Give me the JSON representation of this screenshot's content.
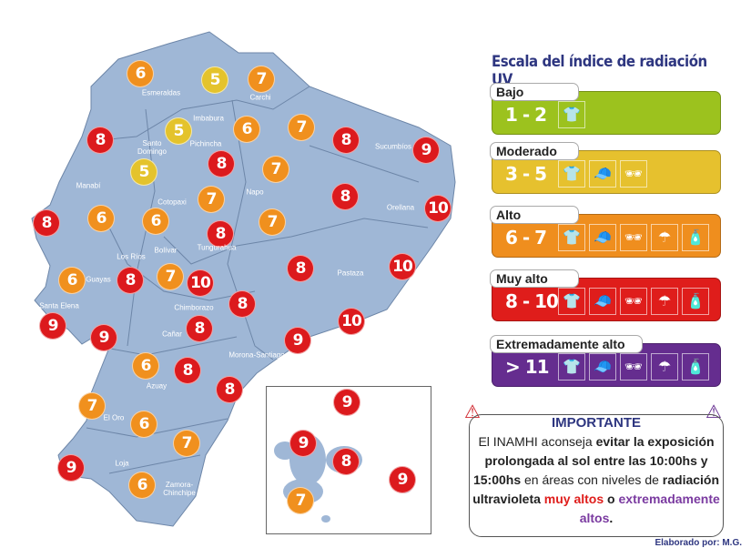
{
  "legend": {
    "title": "Escala del índice de radiación UV",
    "levels": [
      {
        "name": "Bajo",
        "range": "1 - 2",
        "color": "#9cc21e",
        "icons": [
          "shirt-icon"
        ]
      },
      {
        "name": "Moderado",
        "range": "3 - 5",
        "color": "#e6c12e",
        "icons": [
          "shirt-icon",
          "cap-icon",
          "sunglasses-icon"
        ]
      },
      {
        "name": "Alto",
        "range": "6 - 7",
        "color": "#ef8e1e",
        "icons": [
          "shirt-icon",
          "cap-icon",
          "sunglasses-icon",
          "umbrella-icon",
          "sunscreen-icon"
        ]
      },
      {
        "name": "Muy alto",
        "range": "8 - 10",
        "color": "#df1d1b",
        "icons": [
          "shirt-icon",
          "cap-icon",
          "sunglasses-icon",
          "umbrella-icon",
          "sunscreen-icon"
        ]
      },
      {
        "name": "Extremadamente alto",
        "range": "> 11",
        "color": "#652d8f",
        "icons": [
          "shirt-icon",
          "cap-icon",
          "sunglasses-icon",
          "umbrella-icon",
          "sunscreen-icon"
        ]
      }
    ]
  },
  "important": {
    "title": "IMPORTANTE",
    "t1": "El INAMHI aconseja ",
    "b1": "evitar la exposición prolongada al sol entre las 10:00hs y 15:00hs",
    "t2": " en áreas con niveles de ",
    "b2": "radiación ultravioleta ",
    "r1": "muy altos",
    "t3": " o ",
    "p1": "extremadamente altos",
    "t4": "."
  },
  "footer": "Elaborado por: M.G.",
  "provinces": [
    "Esmeraldas",
    "Carchi",
    "Imbabura",
    "Santo Domingo",
    "Pichincha",
    "Sucumbíos",
    "Manabí",
    "Napo",
    "Cotopaxi",
    "Orellana",
    "Los Ríos",
    "Bolívar",
    "Tungurahua",
    "Pastaza",
    "Guayas",
    "Santa Elena",
    "Chimborazo",
    "Cañar",
    "Morona-Santiago",
    "Azuay",
    "El Oro",
    "Loja",
    "Zamora-Chinchipe"
  ],
  "uv_values": [
    6,
    5,
    7,
    5,
    6,
    7,
    8,
    9,
    8,
    8,
    7,
    5,
    7,
    8,
    10,
    8,
    6,
    6,
    8,
    7,
    6,
    8,
    7,
    10,
    8,
    10,
    8,
    9,
    8,
    9,
    10,
    9,
    6,
    8,
    8,
    7,
    6,
    7,
    9,
    6
  ],
  "galapagos_values": [
    9,
    9,
    8,
    9,
    7
  ]
}
